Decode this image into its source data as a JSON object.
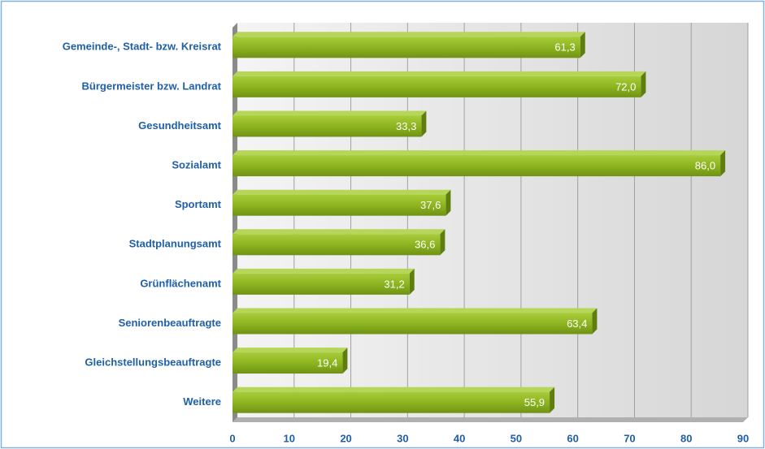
{
  "chart_data": {
    "type": "bar",
    "orientation": "horizontal",
    "categories": [
      "Gemeinde-, Stadt- bzw. Kreisrat",
      "Bürgermeister bzw. Landrat",
      "Gesundheitsamt",
      "Sozialamt",
      "Sportamt",
      "Stadtplanungsamt",
      "Grünflächenamt",
      "Seniorenbeauftragte",
      "Gleichstellungsbeauftragte",
      "Weitere"
    ],
    "values": [
      61.3,
      72.0,
      33.3,
      86.0,
      37.6,
      36.6,
      31.2,
      63.4,
      19.4,
      55.9
    ],
    "value_labels": [
      "61,3",
      "72,0",
      "33,3",
      "86,0",
      "37,6",
      "36,6",
      "31,2",
      "63,4",
      "19,4",
      "55,9"
    ],
    "color": "#8db520",
    "xlim": [
      0,
      90
    ],
    "xticks": [
      0,
      10,
      20,
      30,
      40,
      50,
      60,
      70,
      80,
      90
    ],
    "grid": true
  }
}
